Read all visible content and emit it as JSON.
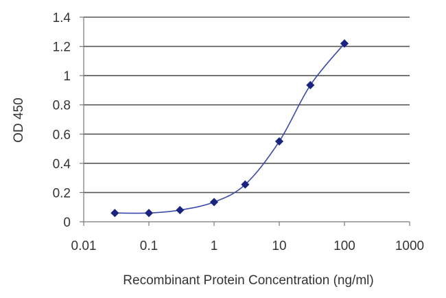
{
  "chart_data": {
    "type": "scatter",
    "title": "",
    "xlabel": "Recombinant Protein Concentration (ng/ml)",
    "ylabel": "OD 450",
    "x_scale": "log",
    "xlim": [
      0.01,
      1000
    ],
    "ylim": [
      0,
      1.4
    ],
    "x_ticks": [
      0.01,
      0.1,
      1,
      10,
      100,
      1000
    ],
    "x_tick_labels": [
      "0.01",
      "0.1",
      "1",
      "10",
      "100",
      "1000"
    ],
    "y_ticks": [
      0,
      0.2,
      0.4,
      0.6,
      0.8,
      1,
      1.2,
      1.4
    ],
    "y_tick_labels": [
      "0",
      "0.2",
      "0.4",
      "0.6",
      "0.8",
      "1",
      "1.2",
      "1.4"
    ],
    "grid": "horizontal",
    "legend": "none",
    "series": [
      {
        "x": [
          0.03,
          0.1,
          0.3,
          1,
          3,
          10,
          30,
          100
        ],
        "y": [
          0.06,
          0.06,
          0.08,
          0.135,
          0.255,
          0.55,
          0.935,
          1.22
        ],
        "marker": "diamond",
        "fitted_curve": true
      }
    ],
    "colors": {
      "series": "#1a237e",
      "curve": "#3949ab",
      "grid": "#555555",
      "axis": "#777777"
    }
  }
}
